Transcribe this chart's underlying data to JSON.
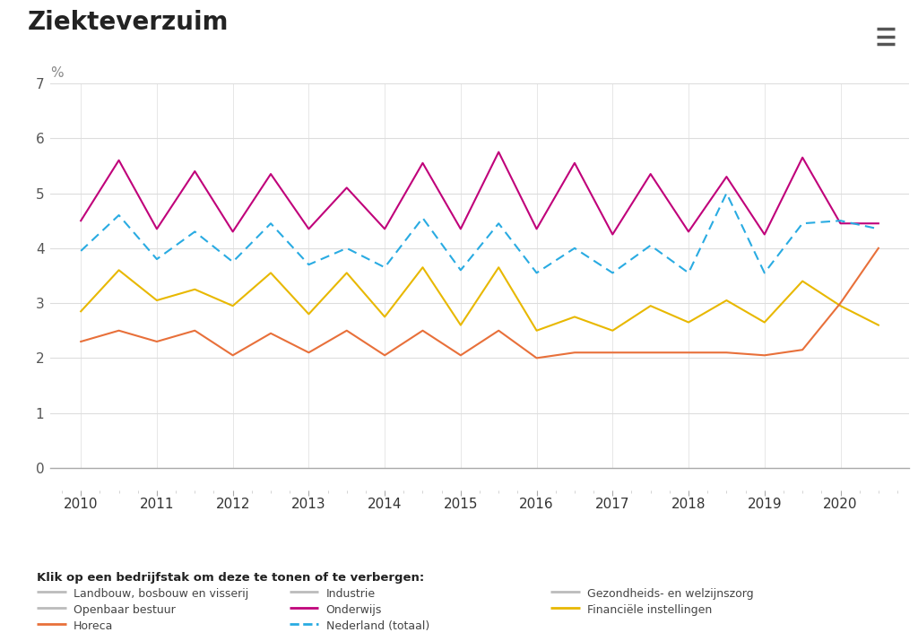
{
  "title": "Ziekteverzuim",
  "ylabel": "%",
  "ylim": [
    0,
    7
  ],
  "yticks": [
    0,
    1,
    2,
    3,
    4,
    5,
    6,
    7
  ],
  "background_color": "#ffffff",
  "onderwijs": {
    "label": "Onderwijs",
    "color": "#c0007a",
    "x": [
      2010.0,
      2010.5,
      2011.0,
      2011.5,
      2012.0,
      2012.5,
      2013.0,
      2013.5,
      2014.0,
      2014.5,
      2015.0,
      2015.5,
      2016.0,
      2016.5,
      2017.0,
      2017.5,
      2018.0,
      2018.5,
      2019.0,
      2019.5,
      2020.0,
      2020.5
    ],
    "y": [
      4.5,
      5.6,
      4.35,
      5.4,
      4.3,
      5.35,
      4.35,
      5.1,
      4.35,
      5.55,
      4.35,
      5.75,
      4.35,
      5.55,
      4.25,
      5.35,
      4.3,
      5.3,
      4.25,
      5.65,
      4.45,
      4.45
    ]
  },
  "nederland": {
    "label": "Nederland (totaal)",
    "color": "#29abe2",
    "x": [
      2010.0,
      2010.5,
      2011.0,
      2011.5,
      2012.0,
      2012.5,
      2013.0,
      2013.5,
      2014.0,
      2014.5,
      2015.0,
      2015.5,
      2016.0,
      2016.5,
      2017.0,
      2017.5,
      2018.0,
      2018.5,
      2019.0,
      2019.5,
      2020.0,
      2020.5
    ],
    "y": [
      3.95,
      4.6,
      3.8,
      4.3,
      3.75,
      4.45,
      3.7,
      4.0,
      3.65,
      4.55,
      3.6,
      4.45,
      3.55,
      4.0,
      3.55,
      4.05,
      3.55,
      5.0,
      3.55,
      4.45,
      4.5,
      4.35
    ]
  },
  "financiele": {
    "label": "Financiële instellingen",
    "color": "#e8b800",
    "x": [
      2010.0,
      2010.5,
      2011.0,
      2011.5,
      2012.0,
      2012.5,
      2013.0,
      2013.5,
      2014.0,
      2014.5,
      2015.0,
      2015.5,
      2016.0,
      2016.5,
      2017.0,
      2017.5,
      2018.0,
      2018.5,
      2019.0,
      2019.5,
      2020.0,
      2020.5
    ],
    "y": [
      2.85,
      3.6,
      3.05,
      3.25,
      2.95,
      3.55,
      2.8,
      3.55,
      2.75,
      3.65,
      2.6,
      3.65,
      2.5,
      2.75,
      2.5,
      2.95,
      2.65,
      3.05,
      2.65,
      3.4,
      2.95,
      2.6
    ]
  },
  "horeca": {
    "label": "Horeca",
    "color": "#e8703a",
    "x": [
      2010.0,
      2010.5,
      2011.0,
      2011.5,
      2012.0,
      2012.5,
      2013.0,
      2013.5,
      2014.0,
      2014.5,
      2015.0,
      2015.5,
      2016.0,
      2016.5,
      2017.0,
      2017.5,
      2018.0,
      2018.5,
      2019.0,
      2019.5,
      2020.0,
      2020.5
    ],
    "y": [
      2.3,
      2.5,
      2.3,
      2.5,
      2.05,
      2.45,
      2.1,
      2.5,
      2.05,
      2.5,
      2.05,
      2.5,
      2.0,
      2.1,
      2.1,
      2.1,
      2.1,
      2.1,
      2.05,
      2.15,
      3.0,
      4.0
    ]
  },
  "legend_items": [
    {
      "label": "Landbouw, bosbouw en visserij",
      "color": "#bbbbbb",
      "linestyle": "solid",
      "row": 0,
      "col": 0
    },
    {
      "label": "Industrie",
      "color": "#bbbbbb",
      "linestyle": "solid",
      "row": 0,
      "col": 1
    },
    {
      "label": "Gezondheids- en welzijnszorg",
      "color": "#bbbbbb",
      "linestyle": "solid",
      "row": 0,
      "col": 2
    },
    {
      "label": "Openbaar bestuur",
      "color": "#bbbbbb",
      "linestyle": "solid",
      "row": 1,
      "col": 0
    },
    {
      "label": "Onderwijs",
      "color": "#c0007a",
      "linestyle": "solid",
      "row": 1,
      "col": 1
    },
    {
      "label": "Financiële instellingen",
      "color": "#e8b800",
      "linestyle": "solid",
      "row": 1,
      "col": 2
    },
    {
      "label": "Horeca",
      "color": "#e8703a",
      "linestyle": "solid",
      "row": 2,
      "col": 0
    },
    {
      "label": "Nederland (totaal)",
      "color": "#29abe2",
      "linestyle": "dashed",
      "row": 2,
      "col": 1
    }
  ],
  "legend_text": "Klik op een bedrijfstak om deze te tonen of te verbergen:",
  "title_fontsize": 20,
  "axis_fontsize": 11
}
